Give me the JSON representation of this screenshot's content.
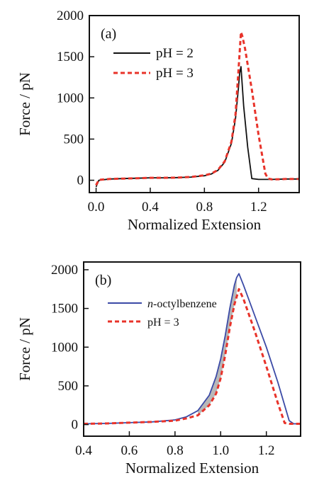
{
  "chart_data": [
    {
      "type": "line",
      "panel_label": "(a)",
      "xlabel": "Normalized Extension",
      "ylabel": "Force / pN",
      "xlim": [
        -0.05,
        1.5
      ],
      "ylim": [
        -150,
        2000
      ],
      "xticks": [
        0.0,
        0.4,
        0.8,
        1.2
      ],
      "xtick_labels": [
        "0.0",
        "0.4",
        "0.8",
        "1.2"
      ],
      "yticks": [
        0,
        500,
        1000,
        1500,
        2000
      ],
      "ytick_labels": [
        "0",
        "500",
        "1000",
        "1500",
        "2000"
      ],
      "legend": {
        "placement": "top-left",
        "entries": [
          {
            "label": "pH = 2",
            "color": "#111111",
            "style": "solid"
          },
          {
            "label": "pH = 3",
            "color": "#e8332a",
            "style": "dashed"
          }
        ]
      },
      "series": [
        {
          "label": "pH = 2",
          "color": "#111111",
          "style": "solid",
          "x": [
            0.0,
            0.02,
            0.1,
            0.2,
            0.3,
            0.4,
            0.5,
            0.6,
            0.7,
            0.8,
            0.85,
            0.9,
            0.95,
            1.0,
            1.03,
            1.05,
            1.06,
            1.07,
            1.09,
            1.12,
            1.15,
            1.2,
            1.3,
            1.4,
            1.5
          ],
          "y": [
            -80,
            0,
            15,
            20,
            25,
            30,
            30,
            32,
            38,
            55,
            75,
            120,
            220,
            450,
            750,
            1100,
            1300,
            1380,
            900,
            400,
            20,
            10,
            10,
            15,
            15
          ]
        },
        {
          "label": "pH = 3",
          "color": "#e8332a",
          "style": "dashed",
          "x": [
            0.0,
            0.02,
            0.1,
            0.2,
            0.3,
            0.4,
            0.5,
            0.6,
            0.7,
            0.8,
            0.85,
            0.9,
            0.95,
            1.0,
            1.03,
            1.05,
            1.07,
            1.08,
            1.1,
            1.15,
            1.2,
            1.25,
            1.27,
            1.3,
            1.4,
            1.5
          ],
          "y": [
            -60,
            5,
            15,
            20,
            25,
            30,
            30,
            32,
            40,
            60,
            80,
            125,
            230,
            470,
            800,
            1300,
            1800,
            1750,
            1600,
            1100,
            550,
            80,
            20,
            10,
            15,
            15
          ]
        }
      ]
    },
    {
      "type": "area",
      "panel_label": "(b)",
      "xlabel": "Normalized Extension",
      "ylabel": "Force / pN",
      "xlim": [
        0.4,
        1.35
      ],
      "ylim": [
        -150,
        2100
      ],
      "xticks": [
        0.4,
        0.6,
        0.8,
        1.0,
        1.2
      ],
      "xtick_labels": [
        "0.4",
        "0.6",
        "0.8",
        "1.0",
        "1.2"
      ],
      "yticks": [
        0,
        500,
        1000,
        1500,
        2000
      ],
      "ytick_labels": [
        "0",
        "500",
        "1000",
        "1500",
        "2000"
      ],
      "legend": {
        "placement": "top-left",
        "entries": [
          {
            "label_prefix": "n",
            "label": "-octylbenzene",
            "color": "#3b4aa6",
            "style": "solid"
          },
          {
            "label": "pH = 3",
            "color": "#e8332a",
            "style": "dashed"
          }
        ]
      },
      "shaded_region": {
        "between": [
          "n-octylbenzene",
          "pH = 3"
        ],
        "x_range": [
          0.9,
          1.07
        ],
        "color": "#b8b8b8"
      },
      "series": [
        {
          "label": "n-octylbenzene",
          "color": "#3b4aa6",
          "style": "solid",
          "x": [
            0.4,
            0.5,
            0.6,
            0.7,
            0.8,
            0.85,
            0.9,
            0.95,
            0.98,
            1.0,
            1.02,
            1.04,
            1.06,
            1.07,
            1.08,
            1.1,
            1.15,
            1.2,
            1.25,
            1.3,
            1.32,
            1.35
          ],
          "y": [
            10,
            15,
            25,
            35,
            60,
            100,
            180,
            380,
            620,
            850,
            1150,
            1500,
            1800,
            1900,
            1950,
            1800,
            1400,
            1000,
            550,
            50,
            10,
            10
          ]
        },
        {
          "label": "pH = 3",
          "color": "#e8332a",
          "style": "dashed",
          "x": [
            0.4,
            0.5,
            0.6,
            0.7,
            0.8,
            0.85,
            0.9,
            0.95,
            0.98,
            1.0,
            1.02,
            1.04,
            1.06,
            1.08,
            1.1,
            1.15,
            1.2,
            1.25,
            1.28,
            1.3,
            1.35
          ],
          "y": [
            10,
            15,
            25,
            35,
            50,
            80,
            120,
            250,
            400,
            600,
            900,
            1250,
            1550,
            1750,
            1620,
            1200,
            750,
            280,
            20,
            10,
            10
          ]
        }
      ]
    }
  ]
}
